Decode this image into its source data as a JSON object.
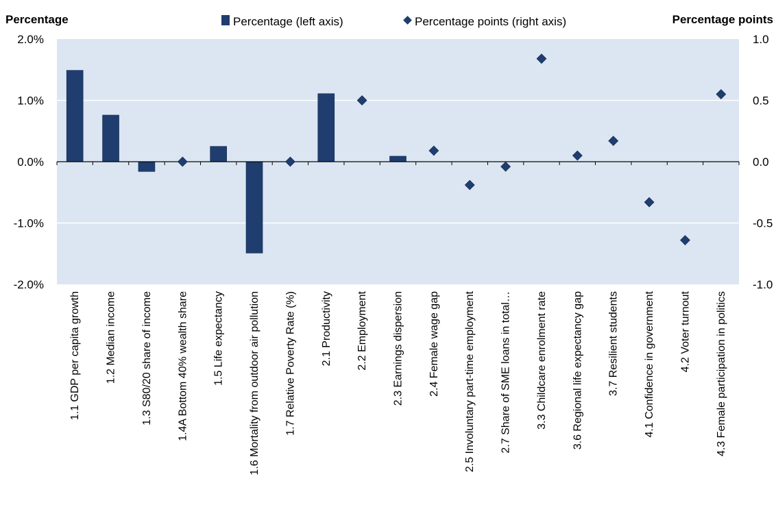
{
  "colors": {
    "plot_background": "#dbe6f2",
    "gridline": "#ffffff",
    "series": "#1f3d6e"
  },
  "chart_data": {
    "type": "bar",
    "left_axis_title": "Percentage",
    "right_axis_title": "Percentage points",
    "left_ylim": [
      -2.0,
      2.0
    ],
    "right_ylim": [
      -1.0,
      1.0
    ],
    "left_ticks": [
      "2.0%",
      "1.0%",
      "0.0%",
      "-1.0%",
      "-2.0%"
    ],
    "right_ticks": [
      "1.0",
      "0.5",
      "0.0",
      "-0.5",
      "-1.0"
    ],
    "legend_position": "top",
    "grid": true,
    "categories": [
      "1.1 GDP per capita growth",
      "1.2 Median income",
      "1.3 S80/20 share of income",
      "1.4A Bottom 40% wealth share",
      "1.5 Life expectancy",
      "1.6 Mortality from outdoor air pollution",
      "1.7 Relative Poverty Rate (%)",
      "2.1 Productivity",
      "2.2 Employment",
      "2.3 Earnings dispersion",
      "2.4 Female wage gap",
      "2.5 Involuntary part-time employment",
      "2.7 Share of SME loans in total…",
      "3.3 Childcare enrolment rate",
      "3.6 Regional life expectancy gap",
      "3.7 Resilient students",
      "4.1 Confidence in government",
      "4.2 Voter turnout",
      "4.3 Female participation in politics"
    ],
    "series": [
      {
        "name": "Percentage (left axis)",
        "type": "bar",
        "axis": "left",
        "values": [
          1.49,
          0.76,
          -0.16,
          null,
          0.25,
          -1.49,
          null,
          1.11,
          null,
          0.09,
          null,
          null,
          null,
          null,
          null,
          null,
          null,
          null,
          null
        ]
      },
      {
        "name": "Percentage points (right axis)",
        "type": "scatter",
        "marker": "diamond",
        "axis": "right",
        "values": [
          null,
          null,
          null,
          0.0,
          null,
          null,
          0.0,
          null,
          0.5,
          null,
          0.09,
          -0.19,
          -0.04,
          0.84,
          0.05,
          0.17,
          -0.33,
          -0.64,
          0.55
        ]
      }
    ]
  }
}
